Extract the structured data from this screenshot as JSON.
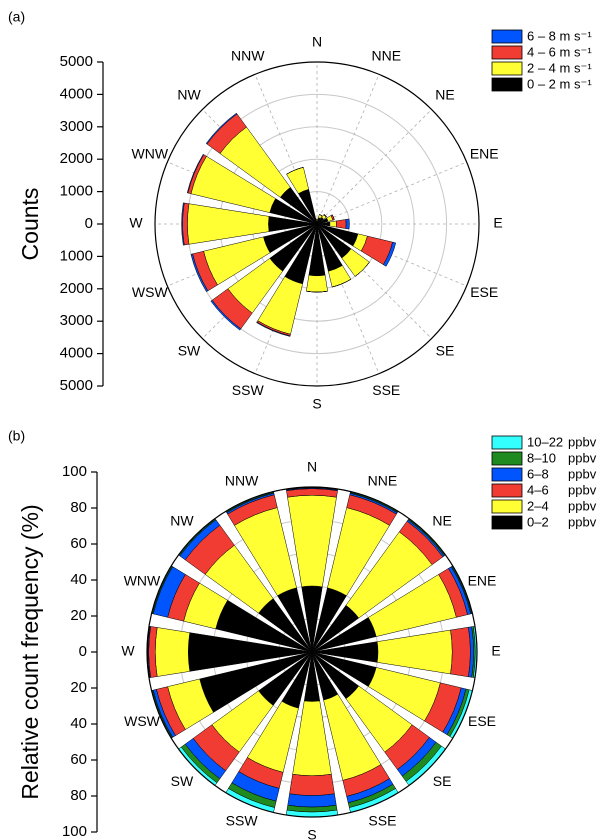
{
  "chart_data": [
    {
      "type": "windrose",
      "panel_label": "(a)",
      "y_label": "Counts",
      "categories": [
        "N",
        "NNE",
        "NE",
        "ENE",
        "E",
        "ESE",
        "SE",
        "SSE",
        "S",
        "SSW",
        "SW",
        "WSW",
        "W",
        "WNW",
        "NW",
        "NNW"
      ],
      "series": [
        {
          "name": "0 – 2 m s⁻¹",
          "color": "#000000",
          "values": [
            100,
            200,
            250,
            350,
            400,
            1300,
            1300,
            1500,
            1600,
            1900,
            1800,
            1700,
            1500,
            1500,
            1400,
            1100
          ]
        },
        {
          "name": "2 – 4 m s⁻¹",
          "color": "#ffff33",
          "values": [
            50,
            100,
            100,
            150,
            200,
            300,
            700,
            500,
            500,
            1600,
            1600,
            1900,
            2500,
            2500,
            2300,
            700
          ]
        },
        {
          "name": "4 – 6 m s⁻¹",
          "color": "#f03c32",
          "values": [
            0,
            0,
            20,
            50,
            300,
            800,
            0,
            0,
            0,
            50,
            600,
            350,
            150,
            100,
            500,
            0
          ]
        },
        {
          "name": "6 – 8 m s⁻¹",
          "color": "#0055ff",
          "values": [
            0,
            0,
            0,
            0,
            100,
            100,
            0,
            0,
            0,
            20,
            50,
            50,
            30,
            20,
            30,
            0
          ]
        }
      ],
      "rlim": [
        0,
        5000
      ],
      "rticks": [
        0,
        1000,
        2000,
        3000,
        4000,
        5000
      ],
      "grid": true,
      "legend": "upper right"
    },
    {
      "type": "windrose",
      "panel_label": "(b)",
      "y_label": "Relative count frequency (%)",
      "legend_unit": "ppbv",
      "categories": [
        "N",
        "NNE",
        "NE",
        "ENE",
        "E",
        "ESE",
        "SE",
        "SSE",
        "S",
        "SSW",
        "SW",
        "WSW",
        "W",
        "WNW",
        "NW",
        "NNW"
      ],
      "series": [
        {
          "name": "0–2",
          "color": "#000000",
          "values": [
            40,
            40,
            35,
            40,
            40,
            40,
            35,
            30,
            30,
            35,
            40,
            70,
            75,
            60,
            40,
            40
          ]
        },
        {
          "name": "2–4",
          "color": "#ffff33",
          "values": [
            55,
            50,
            55,
            50,
            45,
            40,
            40,
            50,
            45,
            40,
            35,
            20,
            20,
            20,
            40,
            50
          ]
        },
        {
          "name": "4–6",
          "color": "#f03c32",
          "values": [
            4,
            8,
            8,
            7,
            11,
            13,
            13,
            10,
            12,
            10,
            14,
            7,
            4,
            10,
            15,
            8
          ]
        },
        {
          "name": "6–8",
          "color": "#0055ff",
          "values": [
            0.5,
            1,
            1,
            2,
            2,
            3,
            5,
            4,
            7,
            8,
            6,
            2,
            0.5,
            9,
            4,
            1
          ]
        },
        {
          "name": "8–10",
          "color": "#1f8a1f",
          "values": [
            0.3,
            0.5,
            0.5,
            0.5,
            1,
            2,
            4,
            3,
            3,
            4,
            3,
            0.5,
            0.3,
            0.5,
            0.5,
            0.5
          ]
        },
        {
          "name": "10–22",
          "color": "#33ffff",
          "values": [
            0.2,
            0.5,
            0.5,
            0.5,
            1,
            2,
            3,
            3,
            3,
            3,
            2,
            0.5,
            0.2,
            0.5,
            0.5,
            0.5
          ]
        }
      ],
      "rlim": [
        0,
        100
      ],
      "rticks": [
        0,
        20,
        40,
        60,
        80,
        100
      ],
      "grid": true,
      "legend": "upper right"
    }
  ]
}
